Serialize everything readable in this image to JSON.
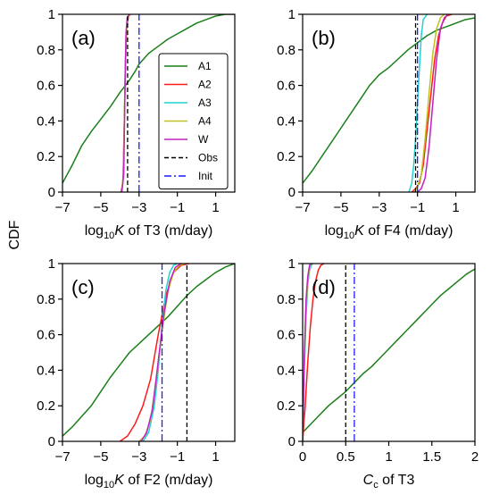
{
  "figure": {
    "ylabel": "CDF"
  },
  "legend": {
    "entries": [
      {
        "label": "A1",
        "color": "#1a7f1a",
        "dash": "solid"
      },
      {
        "label": "A2",
        "color": "#ff1a1a",
        "dash": "solid"
      },
      {
        "label": "A3",
        "color": "#22d1d1",
        "dash": "solid"
      },
      {
        "label": "A4",
        "color": "#bfbf22",
        "dash": "solid"
      },
      {
        "label": "W",
        "color": "#bf22bf",
        "dash": "solid"
      },
      {
        "label": "Obs",
        "color": "#000000",
        "dash": "dash"
      },
      {
        "label": "Init",
        "color": "#1a1aff",
        "dash": "dashdot"
      }
    ]
  },
  "chart_data": [
    {
      "type": "line",
      "panel": "(a)",
      "xlabel": "log10K of T3 (m/day)",
      "xlabel_parts": {
        "pre": "log",
        "sub": "10",
        "ital": "K",
        "post": " of T3 (m/day)"
      },
      "xlim": [
        -7,
        2
      ],
      "ylim": [
        0,
        1
      ],
      "xticks": [
        -7,
        -5,
        -3,
        -1,
        1
      ],
      "xtick_labels": [
        "−7",
        "−5",
        "−3",
        "−1",
        "1"
      ],
      "yticks": [
        0,
        0.2,
        0.4,
        0.6,
        0.8,
        1
      ],
      "ytick_labels": [
        "0",
        "0.2",
        "0.4",
        "0.6",
        "0.8",
        "1"
      ],
      "series": [
        {
          "name": "A1",
          "x": [
            -7,
            -6.5,
            -6,
            -5.5,
            -5,
            -4.5,
            -4,
            -3.5,
            -3.2,
            -3,
            -2.5,
            -2,
            -1.5,
            -1,
            -0.5,
            0,
            0.5,
            1,
            1.5,
            2
          ],
          "y": [
            0.05,
            0.15,
            0.26,
            0.34,
            0.41,
            0.48,
            0.56,
            0.63,
            0.68,
            0.72,
            0.78,
            0.82,
            0.86,
            0.89,
            0.92,
            0.95,
            0.97,
            0.99,
            1.0,
            1.0
          ]
        },
        {
          "name": "A2",
          "x": [
            -3.95,
            -3.85,
            -3.8,
            -3.75,
            -3.7,
            -3.65,
            -3.55,
            -3.45
          ],
          "y": [
            0,
            0.05,
            0.25,
            0.5,
            0.75,
            0.92,
            0.99,
            1.0
          ]
        },
        {
          "name": "A3",
          "x": [
            -3.9,
            -3.82,
            -3.77,
            -3.72,
            -3.67,
            -3.6,
            -3.5
          ],
          "y": [
            0,
            0.1,
            0.4,
            0.7,
            0.9,
            0.98,
            1.0
          ]
        },
        {
          "name": "A4",
          "x": [
            -3.92,
            -3.83,
            -3.78,
            -3.73,
            -3.68,
            -3.6,
            -3.5
          ],
          "y": [
            0,
            0.08,
            0.35,
            0.65,
            0.88,
            0.98,
            1.0
          ]
        },
        {
          "name": "W",
          "x": [
            -3.9,
            -3.8,
            -3.76,
            -3.72,
            -3.68,
            -3.62,
            -3.52
          ],
          "y": [
            0,
            0.1,
            0.4,
            0.7,
            0.9,
            0.98,
            1.0
          ]
        },
        {
          "name": "Obs",
          "x": [
            -3.6,
            -3.6
          ],
          "y": [
            0,
            1
          ]
        },
        {
          "name": "Init",
          "x": [
            -3.0,
            -3.0
          ],
          "y": [
            0,
            1
          ]
        }
      ]
    },
    {
      "type": "line",
      "panel": "(b)",
      "xlabel": "log10K of F4 (m/day)",
      "xlabel_parts": {
        "pre": "log",
        "sub": "10",
        "ital": "K",
        "post": " of F4 (m/day)"
      },
      "xlim": [
        -7,
        2
      ],
      "ylim": [
        0,
        1
      ],
      "xticks": [
        -7,
        -5,
        -3,
        -1,
        1
      ],
      "xtick_labels": [
        "−7",
        "−5",
        "−3",
        "−1",
        "1"
      ],
      "yticks": [
        0,
        0.2,
        0.4,
        0.6,
        0.8,
        1
      ],
      "ytick_labels": [
        "0",
        "0.2",
        "0.4",
        "0.6",
        "0.8",
        "1"
      ],
      "series": [
        {
          "name": "A1",
          "x": [
            -7,
            -6.5,
            -6,
            -5.5,
            -5,
            -4.5,
            -4,
            -3.5,
            -3,
            -2.5,
            -2,
            -1.5,
            -1,
            -0.5,
            0,
            0.5,
            1,
            1.5,
            2
          ],
          "y": [
            0.05,
            0.12,
            0.2,
            0.28,
            0.36,
            0.44,
            0.52,
            0.6,
            0.66,
            0.7,
            0.75,
            0.8,
            0.84,
            0.88,
            0.91,
            0.93,
            0.95,
            0.97,
            0.98
          ]
        },
        {
          "name": "A2",
          "x": [
            -1.3,
            -1.1,
            -0.9,
            -0.7,
            -0.5,
            -0.3,
            -0.1,
            0.1,
            0.3,
            0.5,
            0.8
          ],
          "y": [
            0,
            0.02,
            0.05,
            0.15,
            0.35,
            0.55,
            0.75,
            0.88,
            0.95,
            0.99,
            1.0
          ]
        },
        {
          "name": "A3",
          "x": [
            -1.45,
            -1.3,
            -1.2,
            -1.1,
            -1.0,
            -0.9,
            -0.8,
            -0.7,
            -0.5
          ],
          "y": [
            0,
            0.05,
            0.15,
            0.3,
            0.5,
            0.7,
            0.88,
            0.97,
            1.0
          ]
        },
        {
          "name": "A4",
          "x": [
            -1.2,
            -1.0,
            -0.8,
            -0.6,
            -0.4,
            -0.2,
            0.0,
            0.2,
            0.4
          ],
          "y": [
            0,
            0.03,
            0.1,
            0.3,
            0.55,
            0.78,
            0.92,
            0.98,
            1.0
          ]
        },
        {
          "name": "W",
          "x": [
            -1.0,
            -0.8,
            -0.6,
            -0.4,
            -0.2,
            0.0,
            0.2,
            0.4,
            0.6
          ],
          "y": [
            0,
            0.02,
            0.08,
            0.25,
            0.5,
            0.75,
            0.92,
            0.98,
            1.0
          ]
        },
        {
          "name": "Obs",
          "x": [
            -1.1,
            -1.1
          ],
          "y": [
            0,
            1
          ]
        },
        {
          "name": "Init",
          "x": [
            -1.0,
            -1.0
          ],
          "y": [
            0,
            1
          ]
        }
      ]
    },
    {
      "type": "line",
      "panel": "(c)",
      "xlabel": "log10K of F2 (m/day)",
      "xlabel_parts": {
        "pre": "log",
        "sub": "10",
        "ital": "K",
        "post": " of F2 (m/day)"
      },
      "xlim": [
        -7,
        2
      ],
      "ylim": [
        0,
        1
      ],
      "xticks": [
        -7,
        -5,
        -3,
        -1,
        1
      ],
      "xtick_labels": [
        "−7",
        "−5",
        "−3",
        "−1",
        "1"
      ],
      "yticks": [
        0,
        0.2,
        0.4,
        0.6,
        0.8,
        1
      ],
      "ytick_labels": [
        "0",
        "0.2",
        "0.4",
        "0.6",
        "0.8",
        "1"
      ],
      "series": [
        {
          "name": "A1",
          "x": [
            -7,
            -6.5,
            -6,
            -5.5,
            -5,
            -4.5,
            -4,
            -3.5,
            -3,
            -2.5,
            -2,
            -1.5,
            -1,
            -0.5,
            0,
            0.5,
            1,
            1.5,
            2
          ],
          "y": [
            0.03,
            0.08,
            0.14,
            0.2,
            0.28,
            0.36,
            0.43,
            0.5,
            0.55,
            0.6,
            0.65,
            0.7,
            0.76,
            0.82,
            0.87,
            0.91,
            0.95,
            0.98,
            1.0
          ]
        },
        {
          "name": "A2",
          "x": [
            -4.0,
            -3.6,
            -3.2,
            -2.8,
            -2.4,
            -2.0,
            -1.6,
            -1.2,
            -0.8,
            -0.4
          ],
          "y": [
            0,
            0.03,
            0.1,
            0.2,
            0.35,
            0.6,
            0.82,
            0.95,
            0.99,
            1.0
          ]
        },
        {
          "name": "A3",
          "x": [
            -2.8,
            -2.5,
            -2.2,
            -2.0,
            -1.8,
            -1.6,
            -1.4,
            -1.2,
            -1.0
          ],
          "y": [
            0,
            0.05,
            0.2,
            0.4,
            0.65,
            0.85,
            0.95,
            0.99,
            1.0
          ]
        },
        {
          "name": "A4",
          "x": [
            -3.0,
            -2.7,
            -2.4,
            -2.1,
            -1.8,
            -1.5,
            -1.2,
            -0.9,
            -0.6
          ],
          "y": [
            0,
            0.03,
            0.12,
            0.35,
            0.62,
            0.84,
            0.95,
            0.99,
            1.0
          ]
        },
        {
          "name": "W",
          "x": [
            -2.9,
            -2.6,
            -2.3,
            -2.0,
            -1.7,
            -1.4,
            -1.1,
            -0.8
          ],
          "y": [
            0,
            0.05,
            0.18,
            0.45,
            0.72,
            0.9,
            0.98,
            1.0
          ]
        },
        {
          "name": "Obs",
          "x": [
            -0.5,
            -0.5
          ],
          "y": [
            0,
            1
          ]
        },
        {
          "name": "Init",
          "x": [
            -1.8,
            -1.8
          ],
          "y": [
            0,
            1
          ]
        }
      ]
    },
    {
      "type": "line",
      "panel": "(d)",
      "xlabel": "Cc of T3",
      "xlabel_parts": {
        "pre": "",
        "sub": "",
        "ital": "C",
        "ital_sub": "c",
        "post": " of T3"
      },
      "xlim": [
        0,
        2
      ],
      "ylim": [
        0,
        1
      ],
      "xticks": [
        0,
        0.5,
        1,
        1.5,
        2
      ],
      "xtick_labels": [
        "0",
        "0.5",
        "1",
        "1.5",
        "2"
      ],
      "yticks": [
        0,
        0.2,
        0.4,
        0.6,
        0.8,
        1
      ],
      "ytick_labels": [
        "0",
        "0.2",
        "0.4",
        "0.6",
        "0.8",
        "1"
      ],
      "series": [
        {
          "name": "A1",
          "x": [
            0,
            0.1,
            0.2,
            0.3,
            0.4,
            0.5,
            0.6,
            0.7,
            0.8,
            0.9,
            1.0,
            1.1,
            1.2,
            1.3,
            1.4,
            1.5,
            1.6,
            1.7,
            1.8,
            1.9,
            2.0
          ],
          "y": [
            0.05,
            0.1,
            0.15,
            0.2,
            0.24,
            0.28,
            0.33,
            0.38,
            0.42,
            0.47,
            0.52,
            0.57,
            0.62,
            0.67,
            0.72,
            0.77,
            0.82,
            0.86,
            0.9,
            0.94,
            0.97
          ]
        },
        {
          "name": "A2",
          "x": [
            0,
            0.03,
            0.06,
            0.09,
            0.12,
            0.15,
            0.18,
            0.21,
            0.25
          ],
          "y": [
            0,
            0.2,
            0.45,
            0.65,
            0.8,
            0.9,
            0.96,
            0.99,
            1.0
          ]
        },
        {
          "name": "A3",
          "x": [
            0,
            0.02,
            0.04,
            0.06,
            0.08,
            0.1,
            0.12
          ],
          "y": [
            0,
            0.4,
            0.7,
            0.88,
            0.96,
            0.99,
            1.0
          ]
        },
        {
          "name": "A4",
          "x": [
            0,
            0.02,
            0.04,
            0.06,
            0.08,
            0.1
          ],
          "y": [
            0,
            0.45,
            0.75,
            0.9,
            0.98,
            1.0
          ]
        },
        {
          "name": "W",
          "x": [
            0,
            0.02,
            0.04,
            0.06,
            0.08,
            0.1
          ],
          "y": [
            0,
            0.5,
            0.8,
            0.93,
            0.99,
            1.0
          ]
        },
        {
          "name": "Obs",
          "x": [
            0.5,
            0.5
          ],
          "y": [
            0,
            1
          ]
        },
        {
          "name": "Init",
          "x": [
            0.6,
            0.6
          ],
          "y": [
            0,
            1
          ]
        }
      ]
    }
  ]
}
